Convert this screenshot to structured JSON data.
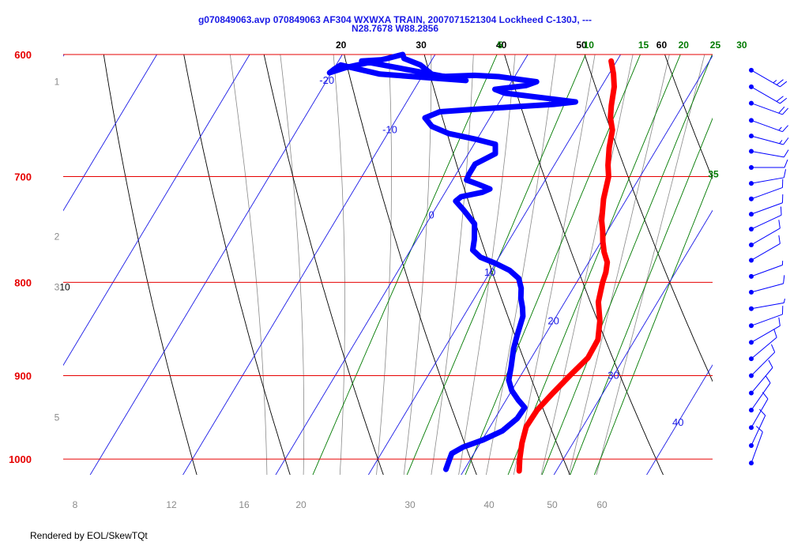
{
  "header": {
    "title_line1": "g070849063.avp 070849063 AF304 WXWXA TRAIN, 2007071521304 Lockheed C-130J, ---",
    "title_line2": "N28.7678 W88.2856"
  },
  "footer": {
    "text": "Rendered by EOL/SkewTQt"
  },
  "colors": {
    "isobar": "#e60000",
    "temperature": "#ff0000",
    "dewpoint": "#0000ff",
    "isotherm": "#1a1ae6",
    "dry_adiabat": "#000000",
    "moist_adiabat": "#8a8a8a",
    "mixing_ratio": "#007a00",
    "wind": "#0000ff"
  },
  "chart_data": {
    "type": "line",
    "subtype": "skew-t log-p",
    "y_axis": {
      "scale": "log",
      "ylim": [
        1020,
        600
      ],
      "ticks": [
        "600",
        "700",
        "800",
        "900",
        "1000"
      ]
    },
    "x_axis": {
      "xlim": [
        -30,
        40
      ]
    },
    "isotherms": [
      "-20",
      "-10",
      "0",
      "10",
      "20",
      "30",
      "40"
    ],
    "dry_adiabats": {
      "top_labels": [
        {
          "t": 20,
          "label": "20"
        },
        {
          "t": 30,
          "label": "30"
        },
        {
          "t": 40,
          "label": "40"
        },
        {
          "t": 50,
          "label": "50"
        },
        {
          "t": 60,
          "label": "60"
        }
      ],
      "side_labels": [
        "10"
      ]
    },
    "mixing_ratio": {
      "top_labels": [
        {
          "w": 5,
          "label": "5"
        },
        {
          "w": 10,
          "label": "10"
        },
        {
          "w": 15,
          "label": "15"
        },
        {
          "w": 20,
          "label": "20"
        },
        {
          "w": 25,
          "label": "25"
        },
        {
          "w": 30,
          "label": "30"
        }
      ],
      "side_labels": [
        {
          "w": 35,
          "label": "35"
        }
      ]
    },
    "moist_adiabats": {
      "bottom_labels": [
        "8",
        "12",
        "16",
        "20",
        "30",
        "40",
        "50",
        "60"
      ],
      "left_labels": [
        "1",
        "2",
        "3",
        "5"
      ]
    },
    "series": [
      {
        "name": "Temperature",
        "points": [
          [
            1015,
            26.0
          ],
          [
            1000,
            25.3
          ],
          [
            980,
            24.5
          ],
          [
            960,
            23.9
          ],
          [
            940,
            24.0
          ],
          [
            920,
            24.6
          ],
          [
            900,
            25.3
          ],
          [
            880,
            26.1
          ],
          [
            860,
            26.0
          ],
          [
            840,
            25.0
          ],
          [
            820,
            23.6
          ],
          [
            800,
            22.8
          ],
          [
            790,
            22.5
          ],
          [
            780,
            22.0
          ],
          [
            770,
            21.0
          ],
          [
            760,
            20.2
          ],
          [
            750,
            19.5
          ],
          [
            740,
            18.7
          ],
          [
            720,
            17.5
          ],
          [
            700,
            16.6
          ],
          [
            690,
            15.8
          ],
          [
            675,
            14.8
          ],
          [
            660,
            14.0
          ],
          [
            650,
            13.0
          ],
          [
            640,
            12.3
          ],
          [
            625,
            11.4
          ],
          [
            615,
            10.5
          ],
          [
            605,
            9.4
          ]
        ]
      },
      {
        "name": "Dewpoint",
        "points": [
          [
            1013,
            18.0
          ],
          [
            1003,
            17.8
          ],
          [
            993,
            17.6
          ],
          [
            985,
            18.4
          ],
          [
            976,
            20.1
          ],
          [
            965,
            21.6
          ],
          [
            950,
            22.4
          ],
          [
            937,
            22.5
          ],
          [
            928,
            21.3
          ],
          [
            917,
            20.0
          ],
          [
            905,
            19.0
          ],
          [
            890,
            18.4
          ],
          [
            870,
            17.5
          ],
          [
            855,
            17.0
          ],
          [
            845,
            16.7
          ],
          [
            835,
            16.4
          ],
          [
            826,
            15.8
          ],
          [
            816,
            15.0
          ],
          [
            806,
            14.4
          ],
          [
            796,
            13.5
          ],
          [
            788,
            12.0
          ],
          [
            781,
            10.0
          ],
          [
            775,
            8.0
          ],
          [
            768,
            6.7
          ],
          [
            758,
            6.2
          ],
          [
            743,
            5.2
          ],
          [
            730,
            3.1
          ],
          [
            722,
            1.7
          ],
          [
            718,
            2.0
          ],
          [
            714,
            4.0
          ],
          [
            711,
            4.6
          ],
          [
            707,
            3.1
          ],
          [
            703,
            1.5
          ],
          [
            698,
            1.4
          ],
          [
            689,
            1.4
          ],
          [
            680,
            2.9
          ],
          [
            672,
            2.3
          ],
          [
            668,
            0.0
          ],
          [
            663,
            -3.4
          ],
          [
            657,
            -5.7
          ],
          [
            650,
            -7.0
          ],
          [
            645,
            -5.8
          ],
          [
            643,
            -2.2
          ],
          [
            641,
            1.8
          ],
          [
            639,
            6.0
          ],
          [
            637,
            8.2
          ],
          [
            634,
            4.8
          ],
          [
            630,
            0.0
          ],
          [
            627,
            -1.3
          ],
          [
            624,
            1.8
          ],
          [
            621,
            2.7
          ],
          [
            617,
            -1.7
          ],
          [
            616,
            -4.4
          ],
          [
            617,
            -8.1
          ],
          [
            615,
            -9.1
          ],
          [
            608,
            -10.9
          ],
          [
            603,
            -13.1
          ],
          [
            600,
            -13.5
          ],
          [
            603,
            -14.9
          ],
          [
            610,
            -18.8
          ],
          [
            614,
            -20.2
          ],
          [
            611,
            -19.9
          ],
          [
            608,
            -19.5
          ],
          [
            615,
            -14.7
          ],
          [
            620,
            -5.0
          ],
          [
            605,
            -17.5
          ],
          [
            604,
            -15.5
          ]
        ]
      }
    ],
    "wind_barbs": [
      {
        "p": 612,
        "dir": 300,
        "kt": 25
      },
      {
        "p": 625,
        "dir": 300,
        "kt": 20
      },
      {
        "p": 638,
        "dir": 290,
        "kt": 20
      },
      {
        "p": 652,
        "dir": 290,
        "kt": 15
      },
      {
        "p": 665,
        "dir": 285,
        "kt": 15
      },
      {
        "p": 678,
        "dir": 280,
        "kt": 10
      },
      {
        "p": 692,
        "dir": 270,
        "kt": 10
      },
      {
        "p": 706,
        "dir": 260,
        "kt": 10
      },
      {
        "p": 720,
        "dir": 250,
        "kt": 10
      },
      {
        "p": 734,
        "dir": 250,
        "kt": 10
      },
      {
        "p": 748,
        "dir": 245,
        "kt": 10
      },
      {
        "p": 763,
        "dir": 240,
        "kt": 10
      },
      {
        "p": 778,
        "dir": 240,
        "kt": 10
      },
      {
        "p": 794,
        "dir": 250,
        "kt": 5
      },
      {
        "p": 810,
        "dir": 255,
        "kt": 10
      },
      {
        "p": 827,
        "dir": 260,
        "kt": 5
      },
      {
        "p": 845,
        "dir": 250,
        "kt": 10
      },
      {
        "p": 863,
        "dir": 240,
        "kt": 10
      },
      {
        "p": 881,
        "dir": 230,
        "kt": 10
      },
      {
        "p": 900,
        "dir": 225,
        "kt": 10
      },
      {
        "p": 920,
        "dir": 220,
        "kt": 10
      },
      {
        "p": 940,
        "dir": 215,
        "kt": 10
      },
      {
        "p": 961,
        "dir": 210,
        "kt": 10
      },
      {
        "p": 983,
        "dir": 205,
        "kt": 10
      },
      {
        "p": 1005,
        "dir": 200,
        "kt": 10
      }
    ]
  }
}
